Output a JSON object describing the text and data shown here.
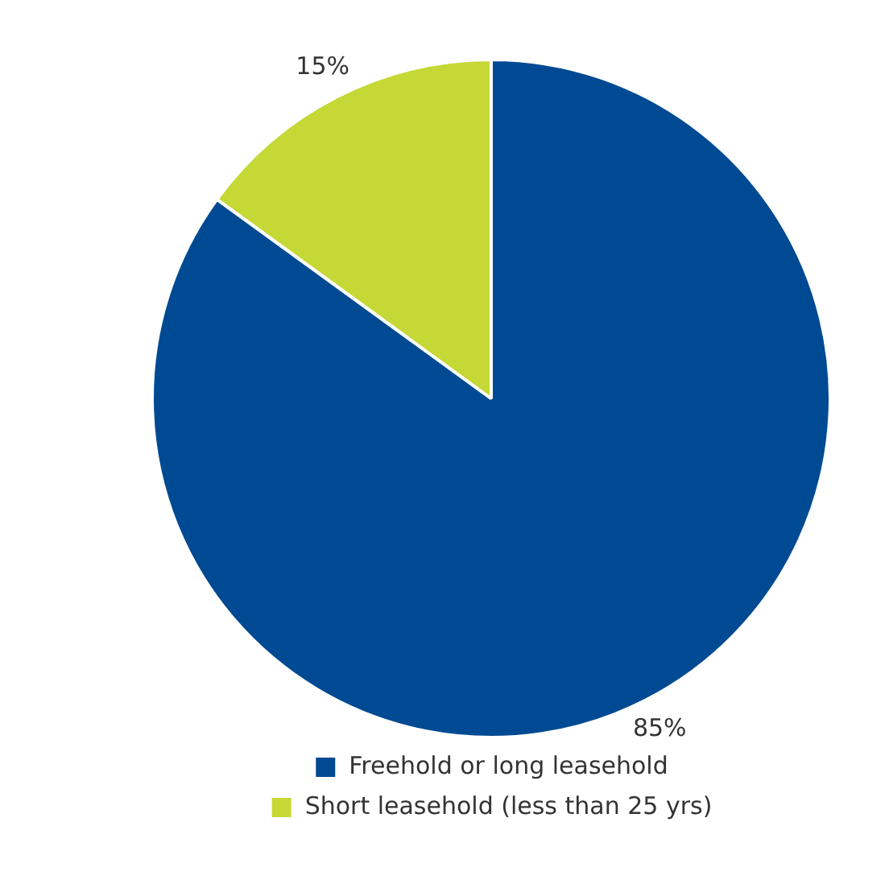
{
  "chart_data": {
    "type": "pie",
    "categories": [
      "Freehold or long leasehold",
      "Short leasehold (less than 25 yrs)"
    ],
    "values": [
      85,
      15
    ],
    "colors": [
      "#004a93",
      "#c5d836"
    ],
    "legend": "bottom",
    "value_labels": [
      "85%",
      "15%"
    ]
  }
}
